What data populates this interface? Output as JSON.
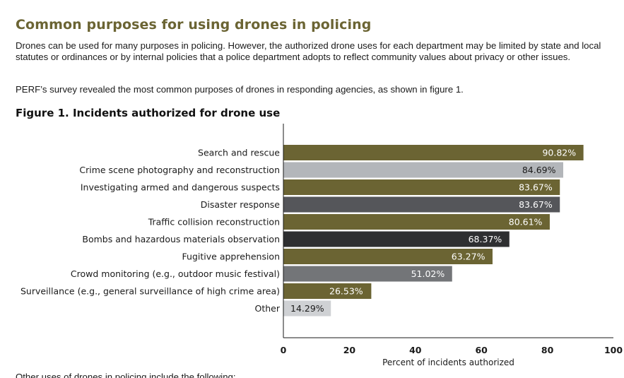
{
  "document": {
    "heading": "Common purposes for using drones in policing",
    "paragraph1": "Drones can be used for many purposes in policing. However, the authorized drone uses for each department may be limited by state and local statutes or ordinances or by internal policies that a police department adopts to reflect community values about privacy or other issues.",
    "paragraph2": "PERF’s survey revealed the most common purposes of drones in responding agencies, as shown in figure 1.",
    "figure_title": "Figure 1. Incidents authorized for drone use",
    "cut_off_text": "Other uses of drones in policing include the following:"
  },
  "chart_data": {
    "type": "bar",
    "orientation": "horizontal",
    "title": "Figure 1. Incidents authorized for drone use",
    "xlabel": "Percent of incidents authorized",
    "ylabel": "",
    "xlim": [
      0,
      100
    ],
    "x_ticks": [
      0,
      20,
      40,
      60,
      80,
      100
    ],
    "grid": false,
    "legend": "none",
    "categories": [
      "Search and rescue",
      "Crime scene photography and reconstruction",
      "Investigating armed and dangerous suspects",
      "Disaster response",
      "Traffic collision reconstruction",
      "Bombs and hazardous materials observation",
      "Fugitive apprehension",
      "Crowd monitoring (e.g., outdoor music festival)",
      "Surveillance (e.g., general surveillance of high crime area)",
      "Other"
    ],
    "values": [
      90.82,
      84.69,
      83.67,
      83.67,
      80.61,
      68.37,
      63.27,
      51.02,
      26.53,
      14.29
    ],
    "value_labels": [
      "90.82%",
      "84.69%",
      "83.67%",
      "83.67%",
      "80.61%",
      "68.37%",
      "63.27%",
      "51.02%",
      "26.53%",
      "14.29%"
    ],
    "bar_colors": [
      "#6b6433",
      "#b3b6ba",
      "#6b6433",
      "#55565a",
      "#6b6433",
      "#2e2f31",
      "#6b6433",
      "#737578",
      "#6b6433",
      "#cfd1d4"
    ],
    "label_colors": [
      "#ffffff",
      "#1a1a1a",
      "#ffffff",
      "#ffffff",
      "#ffffff",
      "#ffffff",
      "#ffffff",
      "#ffffff",
      "#ffffff",
      "#1a1a1a"
    ]
  }
}
